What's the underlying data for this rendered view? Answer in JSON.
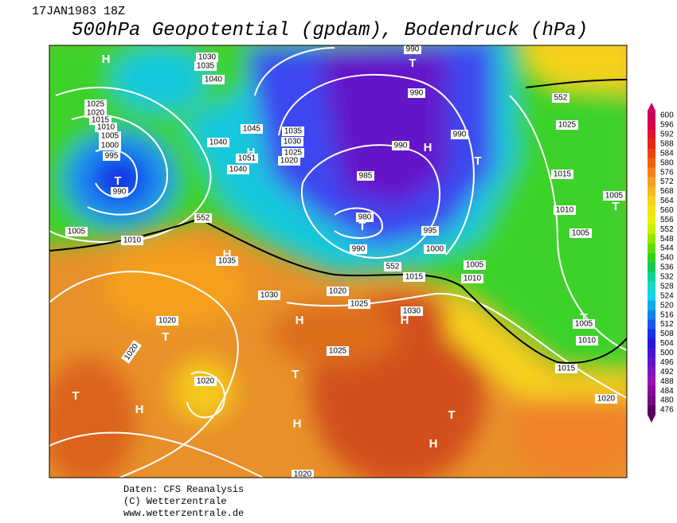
{
  "header": {
    "date": "17JAN1983 18Z",
    "title": "500hPa Geopotential (gpdam), Bodendruck (hPa)"
  },
  "map": {
    "pressure_centers": [
      "H",
      "T",
      "H",
      "H",
      "T",
      "H",
      "T",
      "T",
      "T",
      "T",
      "H",
      "H",
      "T",
      "T",
      "T",
      "H",
      "H",
      "T",
      "H"
    ],
    "isobar_labels": [
      1030,
      1035,
      1040,
      1025,
      1020,
      1015,
      1010,
      1005,
      1000,
      995,
      990,
      1005,
      1010,
      1045,
      1040,
      1051,
      1040,
      1035,
      1030,
      1025,
      1020,
      990,
      990,
      990,
      990,
      985,
      980,
      995,
      1000,
      990,
      1025,
      1015,
      1005,
      1010,
      1005,
      1005,
      1010,
      1015,
      1035,
      1030,
      1020,
      1025,
      1030,
      1020,
      1020,
      1025,
      1020,
      1010,
      1005,
      1015,
      1020,
      1020
    ],
    "height_labels": [
      552,
      552,
      552
    ]
  },
  "colorbar": {
    "values": [
      600,
      596,
      592,
      588,
      584,
      580,
      576,
      572,
      568,
      564,
      560,
      556,
      552,
      548,
      544,
      540,
      536,
      532,
      528,
      524,
      520,
      516,
      512,
      508,
      504,
      500,
      496,
      492,
      488,
      484,
      480,
      476
    ],
    "colors": [
      "#c8005a",
      "#d7004b",
      "#e1142d",
      "#e62814",
      "#eb460f",
      "#f0640f",
      "#f5821e",
      "#f5a01e",
      "#f5b91e",
      "#f5d21e",
      "#f0e614",
      "#e6f00a",
      "#c8f000",
      "#96e600",
      "#64dc00",
      "#32d21e",
      "#14c85a",
      "#14d296",
      "#14dcc8",
      "#14d2f0",
      "#14aaf0",
      "#1482f0",
      "#145af0",
      "#1432e6",
      "#2814dc",
      "#4614d2",
      "#6414c8",
      "#8214be",
      "#9614b4",
      "#8c0a96",
      "#780a82",
      "#5a0064"
    ]
  },
  "footer": {
    "lines": [
      "Daten: CFS Reanalysis",
      "(C) Wetterzentrale",
      "www.wetterzentrale.de"
    ]
  }
}
